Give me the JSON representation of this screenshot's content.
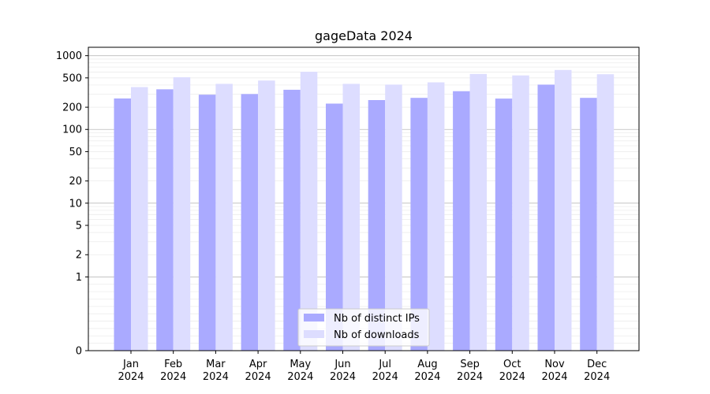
{
  "chart_data": {
    "type": "bar",
    "title": "gageData 2024",
    "xlabel": "",
    "ylabel": "",
    "yscale": "symlog",
    "ylim": [
      0,
      1300
    ],
    "yticks": [
      0,
      1,
      2,
      5,
      10,
      20,
      50,
      100,
      200,
      500,
      1000
    ],
    "grid": "horizontal",
    "legend_position": "bottom-center",
    "categories": [
      {
        "month": "Jan",
        "year": "2024"
      },
      {
        "month": "Feb",
        "year": "2024"
      },
      {
        "month": "Mar",
        "year": "2024"
      },
      {
        "month": "Apr",
        "year": "2024"
      },
      {
        "month": "May",
        "year": "2024"
      },
      {
        "month": "Jun",
        "year": "2024"
      },
      {
        "month": "Jul",
        "year": "2024"
      },
      {
        "month": "Aug",
        "year": "2024"
      },
      {
        "month": "Sep",
        "year": "2024"
      },
      {
        "month": "Oct",
        "year": "2024"
      },
      {
        "month": "Nov",
        "year": "2024"
      },
      {
        "month": "Dec",
        "year": "2024"
      }
    ],
    "series": [
      {
        "name": "Nb of distinct IPs",
        "color": "#aaaaff",
        "values": [
          263,
          350,
          296,
          302,
          345,
          224,
          250,
          268,
          330,
          262,
          405,
          268
        ]
      },
      {
        "name": "Nb of downloads",
        "color": "#ddddff",
        "values": [
          375,
          510,
          415,
          460,
          605,
          415,
          405,
          435,
          565,
          540,
          640,
          560
        ]
      }
    ]
  }
}
